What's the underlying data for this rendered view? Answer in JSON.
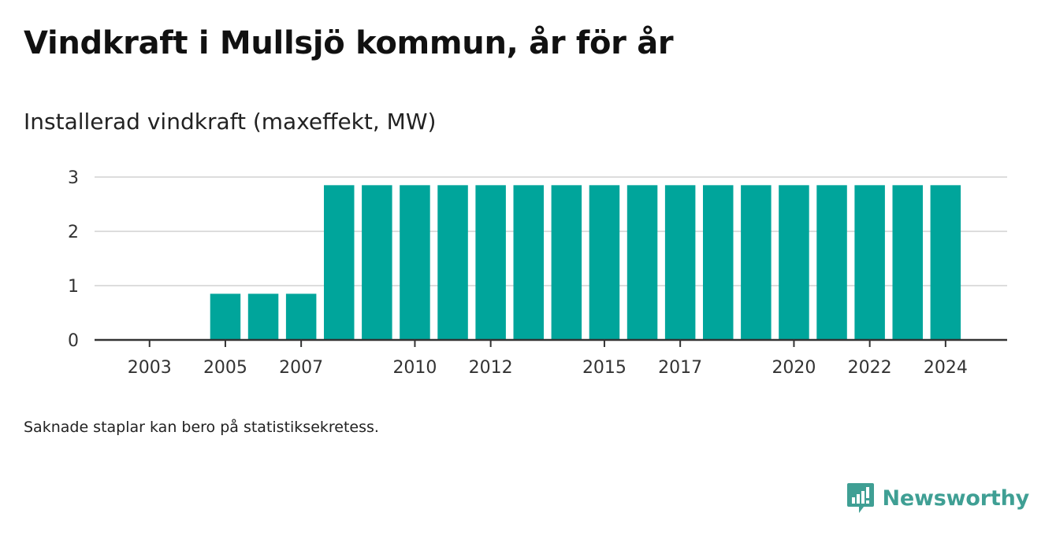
{
  "title": "Vindkraft i Mullsjö kommun, år för år",
  "subtitle": "Installerad vindkraft (maxeffekt, MW)",
  "footnote": "Saknade staplar kan bero på statistiksekretess.",
  "brand": {
    "name": "Newsworthy",
    "icon": "newsworthy-logo-icon",
    "color": "#3f9f94"
  },
  "colors": {
    "bar": "#00a59b",
    "grid": "#dddddd",
    "axis": "#333333"
  },
  "chart_data": {
    "type": "bar",
    "x": [
      2003,
      2004,
      2005,
      2006,
      2007,
      2008,
      2009,
      2010,
      2011,
      2012,
      2013,
      2014,
      2015,
      2016,
      2017,
      2018,
      2019,
      2020,
      2021,
      2022,
      2023,
      2024
    ],
    "values": [
      0,
      0,
      0.85,
      0.85,
      0.85,
      2.85,
      2.85,
      2.85,
      2.85,
      2.85,
      2.85,
      2.85,
      2.85,
      2.85,
      2.85,
      2.85,
      2.85,
      2.85,
      2.85,
      2.85,
      2.85,
      2.85
    ],
    "x_tick_labels": [
      "2003",
      "2005",
      "2007",
      "2010",
      "2012",
      "2015",
      "2017",
      "2020",
      "2022",
      "2024"
    ],
    "y_ticks": [
      0,
      1,
      2,
      3
    ],
    "ylim": [
      0,
      3
    ],
    "xlabel": "",
    "ylabel": "",
    "grid": true,
    "legend": "none"
  }
}
